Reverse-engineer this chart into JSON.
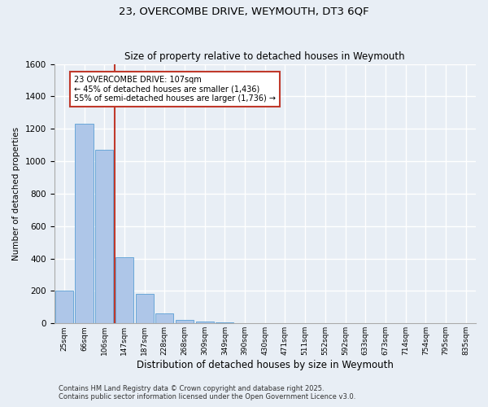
{
  "title1": "23, OVERCOMBE DRIVE, WEYMOUTH, DT3 6QF",
  "title2": "Size of property relative to detached houses in Weymouth",
  "xlabel": "Distribution of detached houses by size in Weymouth",
  "ylabel": "Number of detached properties",
  "categories": [
    "25sqm",
    "66sqm",
    "106sqm",
    "147sqm",
    "187sqm",
    "228sqm",
    "268sqm",
    "309sqm",
    "349sqm",
    "390sqm",
    "430sqm",
    "471sqm",
    "511sqm",
    "552sqm",
    "592sqm",
    "633sqm",
    "673sqm",
    "714sqm",
    "754sqm",
    "795sqm",
    "835sqm"
  ],
  "values": [
    200,
    1230,
    1070,
    410,
    180,
    60,
    20,
    10,
    5,
    2,
    0,
    0,
    0,
    0,
    0,
    0,
    0,
    0,
    0,
    0,
    0
  ],
  "bar_color": "#aec6e8",
  "bar_edge_color": "#5a9fd4",
  "vline_bin": 2,
  "vline_color": "#c0392b",
  "ylim": [
    0,
    1600
  ],
  "yticks": [
    0,
    200,
    400,
    600,
    800,
    1000,
    1200,
    1400,
    1600
  ],
  "annotation_text": "23 OVERCOMBE DRIVE: 107sqm\n← 45% of detached houses are smaller (1,436)\n55% of semi-detached houses are larger (1,736) →",
  "annotation_box_color": "#ffffff",
  "annotation_border_color": "#c0392b",
  "footnote1": "Contains HM Land Registry data © Crown copyright and database right 2025.",
  "footnote2": "Contains public sector information licensed under the Open Government Licence v3.0.",
  "bg_color": "#e8eef5",
  "plot_bg_color": "#e8eef5",
  "grid_color": "#ffffff"
}
